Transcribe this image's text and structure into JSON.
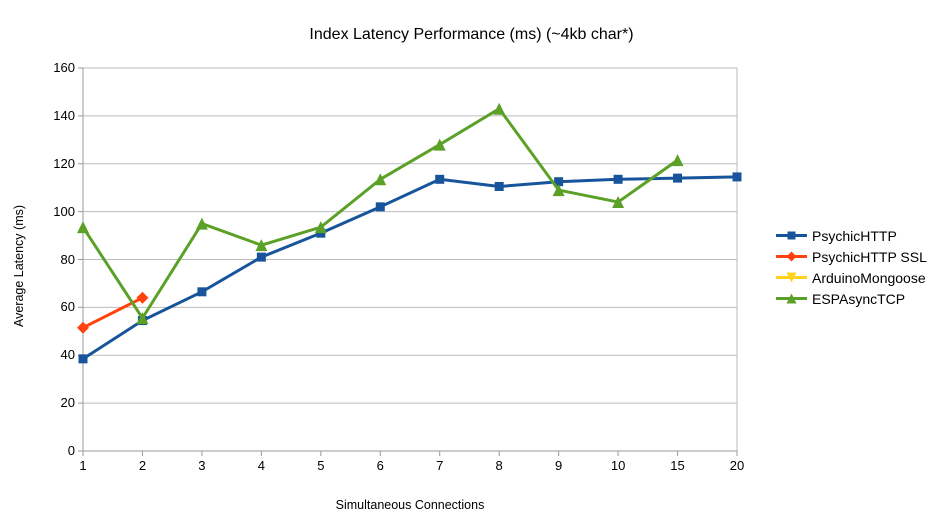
{
  "title": "Index Latency Performance (ms) (~4kb char*)",
  "colors": {
    "background": "#FFFFFF",
    "text": "#000000",
    "gridline": "#BBBBBB",
    "axis": "#999999"
  },
  "chart_data": {
    "type": "line",
    "title": "Index Latency Performance (ms) (~4kb char*)",
    "xlabel": "Simultaneous Connections",
    "ylabel": "Average Latency (ms)",
    "categories": [
      "1",
      "2",
      "3",
      "4",
      "5",
      "6",
      "7",
      "8",
      "9",
      "10",
      "15",
      "20"
    ],
    "ylim": [
      0,
      160
    ],
    "yticks": [
      "0",
      "20",
      "40",
      "60",
      "80",
      "100",
      "120",
      "140",
      "160"
    ],
    "grid": true,
    "legend_position": "right",
    "series": [
      {
        "name": "PsychicHTTP",
        "color": "#17549B",
        "marker": "square",
        "values": [
          38.5,
          54.5,
          66.5,
          81,
          91,
          102,
          113.5,
          110.5,
          112.5,
          113.5,
          114,
          114.5
        ]
      },
      {
        "name": "PsychicHTTP SSL",
        "color": "#FF420E",
        "marker": "diamond",
        "values": [
          51.5,
          64,
          null,
          null,
          null,
          null,
          null,
          null,
          null,
          null,
          null,
          null
        ]
      },
      {
        "name": "ArduinoMongoose",
        "color": "#FFD320",
        "marker": "triangle-down",
        "values": [
          null,
          null,
          null,
          null,
          null,
          null,
          null,
          null,
          null,
          null,
          null,
          null
        ]
      },
      {
        "name": "ESPAsyncTCP",
        "color": "#5BA127",
        "marker": "triangle-up",
        "values": [
          93.5,
          55.5,
          95,
          86,
          93.5,
          113.5,
          128,
          143,
          109,
          104,
          121.5,
          null
        ]
      }
    ]
  }
}
